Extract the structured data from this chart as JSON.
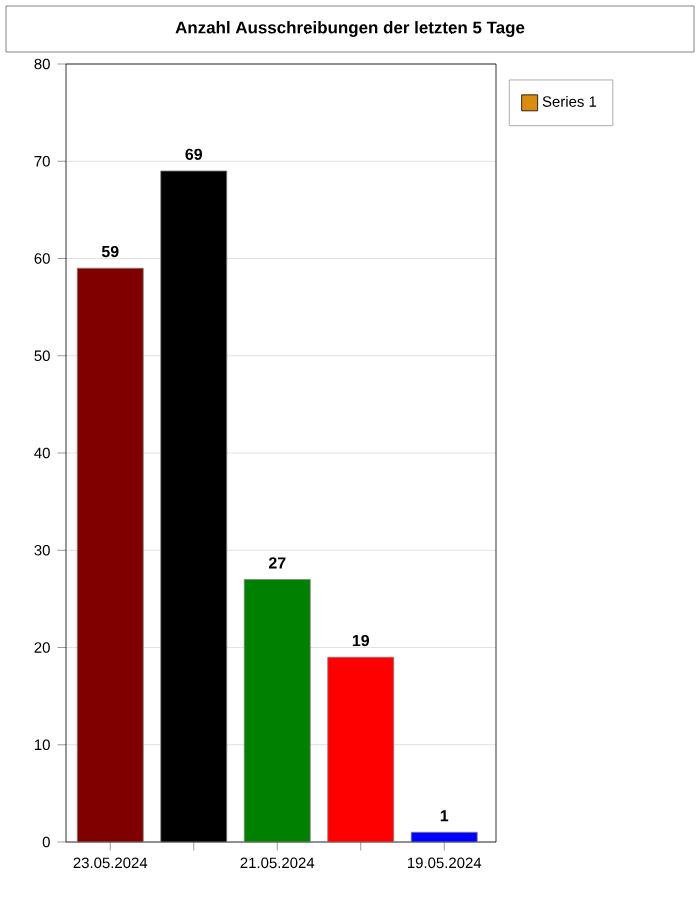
{
  "chart_data": {
    "type": "bar",
    "title": "Anzahl Ausschreibungen der letzten 5 Tage",
    "categories": [
      "23.05.2024",
      null,
      "21.05.2024",
      null,
      "19.05.2024"
    ],
    "series": [
      {
        "name": "Series 1",
        "color": "#d98c10",
        "colors": [
          "#800000",
          "#000000",
          "#008000",
          "#ff0000",
          "#0000ff"
        ],
        "values": [
          59,
          69,
          27,
          19,
          1
        ]
      }
    ],
    "ylim": [
      0,
      80
    ],
    "yticks": [
      0,
      10,
      20,
      30,
      40,
      50,
      60,
      70,
      80
    ],
    "grid": "y",
    "legend": "top right",
    "data_labels": true
  }
}
